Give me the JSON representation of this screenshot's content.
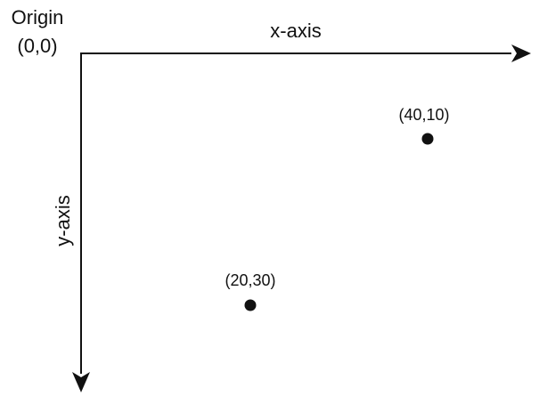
{
  "diagram": {
    "origin_label": "Origin",
    "origin_coords": "(0,0)",
    "x_axis_label": "x-axis",
    "y_axis_label": "y-axis",
    "points": [
      {
        "label": "(40,10)",
        "x": 40,
        "y": 10
      },
      {
        "label": "(20,30)",
        "x": 20,
        "y": 30
      }
    ],
    "colors": {
      "ink": "#111111",
      "background": "#ffffff"
    }
  }
}
